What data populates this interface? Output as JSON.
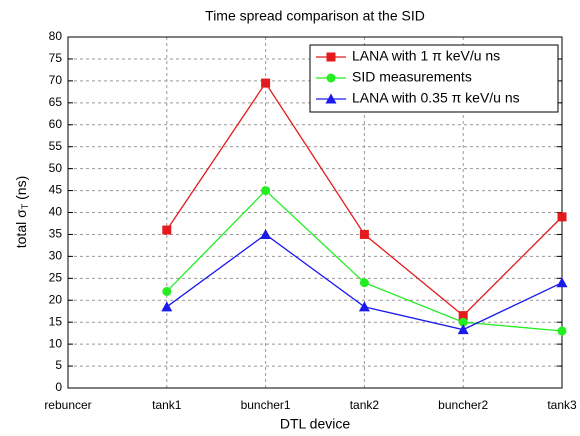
{
  "chart_data": {
    "type": "line",
    "title": "Time spread comparison at the SID",
    "xlabel": "DTL device",
    "ylabel": [
      "total σ",
      "T",
      " (ns)"
    ],
    "categories": [
      "rebuncer",
      "tank1",
      "buncher1",
      "tank2",
      "buncher2",
      "tank3"
    ],
    "series": [
      {
        "name": "LANA  with 1 π keV/u ns",
        "color": "#e41a1c",
        "marker": "square",
        "values": [
          null,
          36,
          69.5,
          35,
          16.5,
          39
        ]
      },
      {
        "name": "SID measurements",
        "color": "#22ee22",
        "marker": "circle",
        "values": [
          null,
          22,
          45,
          24,
          15,
          13
        ]
      },
      {
        "name": "LANA  with 0.35 π keV/u ns",
        "color": "#1a1aee",
        "marker": "triangle",
        "values": [
          null,
          18.5,
          35,
          18.5,
          13.3,
          24
        ]
      }
    ],
    "ylim": [
      0,
      80
    ],
    "yticks": [
      0,
      5,
      10,
      15,
      20,
      25,
      30,
      35,
      40,
      45,
      50,
      55,
      60,
      65,
      70,
      75,
      80
    ],
    "grid": true,
    "legend": "upper right"
  }
}
